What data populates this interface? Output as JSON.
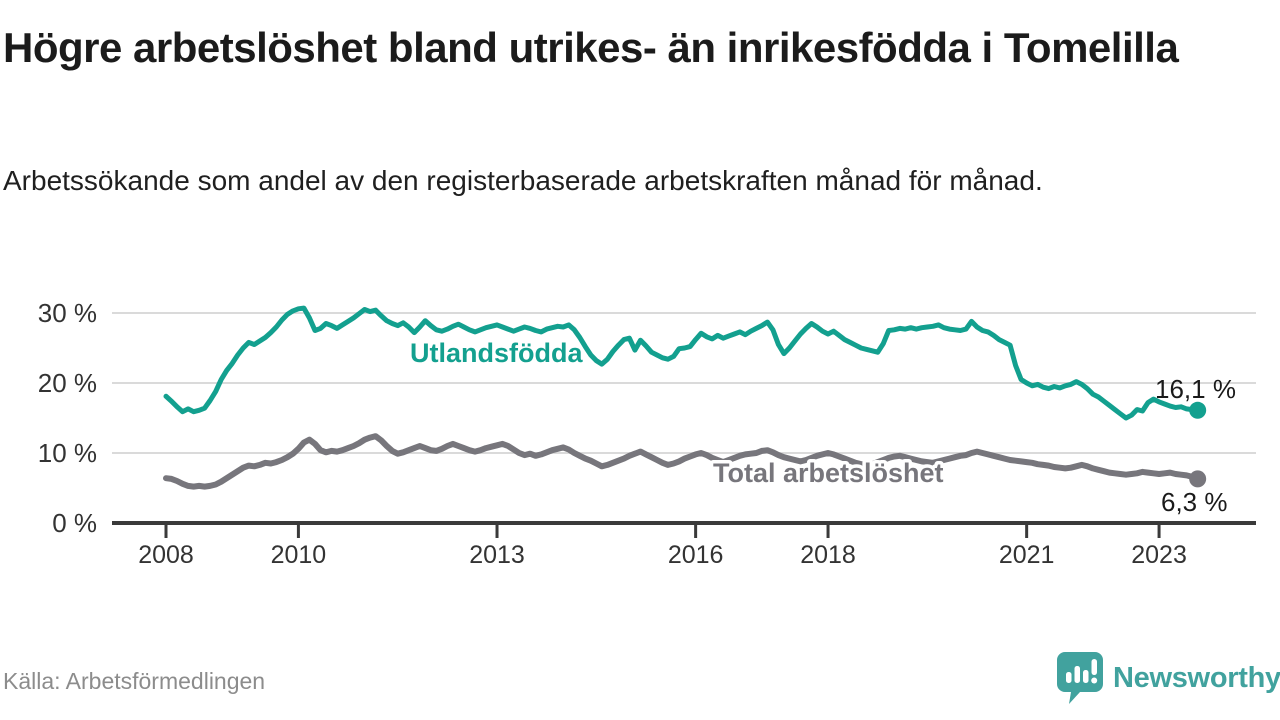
{
  "header": {
    "title": "Högre arbetslöshet bland utrikes- än inrikesfödda i Tomelilla",
    "subtitle": "Arbetssökande som andel av den registerbaserade arbetskraften månad för månad."
  },
  "footer": {
    "source": "Källa: Arbetsförmedlingen",
    "brand": "Newsworthy"
  },
  "colors": {
    "series_foreign_born": "#13a08f",
    "series_total": "#77767c",
    "grid": "#dadada",
    "axis": "#3a3a3a",
    "tick_label": "#333333",
    "value_label": "#1a1a1a",
    "brand_teal": "#41a29e",
    "source_gray": "#8c8c8c"
  },
  "chart_data": {
    "type": "line",
    "xlabel": "",
    "ylabel": "",
    "x_unit": "month",
    "x_start": "2008-01",
    "x_end": "2023-08",
    "ylim": [
      0,
      32
    ],
    "grid": true,
    "legend_position": "inline-labels",
    "y_ticks": [
      {
        "v": 0,
        "label": "0 %"
      },
      {
        "v": 10,
        "label": "10 %"
      },
      {
        "v": 20,
        "label": "20 %"
      },
      {
        "v": 30,
        "label": "30 %"
      }
    ],
    "x_ticks": [
      {
        "i": 0,
        "label": "2008"
      },
      {
        "i": 24,
        "label": "2010"
      },
      {
        "i": 60,
        "label": "2013"
      },
      {
        "i": 96,
        "label": "2016"
      },
      {
        "i": 120,
        "label": "2018"
      },
      {
        "i": 156,
        "label": "2021"
      },
      {
        "i": 180,
        "label": "2023"
      }
    ],
    "series": [
      {
        "name": "Utlandsfödda",
        "color": "#13a08f",
        "end_label": "16,1 %",
        "end_value": 16.1,
        "values": [
          18.1,
          17.4,
          16.6,
          15.9,
          16.3,
          15.9,
          16.1,
          16.4,
          17.5,
          18.8,
          20.5,
          21.8,
          22.8,
          24.0,
          25.0,
          25.8,
          25.5,
          26.0,
          26.5,
          27.2,
          28.0,
          29.0,
          29.8,
          30.3,
          30.6,
          30.7,
          29.3,
          27.5,
          27.8,
          28.5,
          28.2,
          27.8,
          28.3,
          28.8,
          29.3,
          29.9,
          30.5,
          30.2,
          30.4,
          29.6,
          28.9,
          28.5,
          28.2,
          28.6,
          28.0,
          27.2,
          28.0,
          28.9,
          28.2,
          27.6,
          27.4,
          27.7,
          28.1,
          28.4,
          28.0,
          27.6,
          27.3,
          27.6,
          27.9,
          28.1,
          28.3,
          28.0,
          27.7,
          27.4,
          27.7,
          28.0,
          27.8,
          27.5,
          27.3,
          27.7,
          27.9,
          28.1,
          28.0,
          28.3,
          27.6,
          26.5,
          25.2,
          24.0,
          23.2,
          22.7,
          23.4,
          24.5,
          25.4,
          26.2,
          26.4,
          24.7,
          26.1,
          25.3,
          24.4,
          24.0,
          23.6,
          23.4,
          23.8,
          24.9,
          25.0,
          25.2,
          26.2,
          27.1,
          26.6,
          26.3,
          26.8,
          26.4,
          26.7,
          27.0,
          27.3,
          26.9,
          27.4,
          27.8,
          28.2,
          28.7,
          27.6,
          25.5,
          24.2,
          25.0,
          26.0,
          27.0,
          27.8,
          28.5,
          28.0,
          27.4,
          27.0,
          27.4,
          26.8,
          26.2,
          25.8,
          25.4,
          25.0,
          24.8,
          24.6,
          24.4,
          25.6,
          27.5,
          27.6,
          27.8,
          27.7,
          27.9,
          27.7,
          27.9,
          28.0,
          28.1,
          28.3,
          27.9,
          27.7,
          27.6,
          27.5,
          27.7,
          28.8,
          28.0,
          27.5,
          27.3,
          26.8,
          26.2,
          25.8,
          25.4,
          22.5,
          20.5,
          20.0,
          19.6,
          19.8,
          19.4,
          19.2,
          19.5,
          19.3,
          19.6,
          19.8,
          20.2,
          19.8,
          19.2,
          18.4,
          18.0,
          17.4,
          16.8,
          16.2,
          15.6,
          15.0,
          15.4,
          16.2,
          16.0,
          17.2,
          17.7,
          17.3,
          17.0,
          16.7,
          16.5,
          16.6,
          16.3,
          16.2,
          16.1
        ]
      },
      {
        "name": "Total arbetslöshet",
        "color": "#77767c",
        "end_label": "6,3 %",
        "end_value": 6.3,
        "values": [
          6.4,
          6.3,
          6.0,
          5.6,
          5.3,
          5.2,
          5.3,
          5.2,
          5.3,
          5.5,
          5.9,
          6.4,
          6.9,
          7.4,
          7.9,
          8.2,
          8.1,
          8.3,
          8.6,
          8.5,
          8.7,
          9.0,
          9.4,
          9.9,
          10.6,
          11.5,
          11.9,
          11.3,
          10.4,
          10.1,
          10.3,
          10.2,
          10.4,
          10.7,
          11.0,
          11.4,
          11.9,
          12.2,
          12.4,
          11.8,
          11.0,
          10.3,
          9.9,
          10.1,
          10.4,
          10.7,
          11.0,
          10.7,
          10.4,
          10.3,
          10.6,
          11.0,
          11.3,
          11.0,
          10.7,
          10.4,
          10.2,
          10.4,
          10.7,
          10.9,
          11.1,
          11.3,
          11.0,
          10.5,
          10.0,
          9.7,
          9.9,
          9.6,
          9.8,
          10.1,
          10.4,
          10.6,
          10.8,
          10.5,
          10.0,
          9.6,
          9.2,
          8.9,
          8.5,
          8.1,
          8.3,
          8.6,
          8.9,
          9.2,
          9.6,
          9.9,
          10.2,
          9.8,
          9.4,
          9.0,
          8.6,
          8.3,
          8.5,
          8.8,
          9.2,
          9.5,
          9.8,
          10.0,
          9.7,
          9.3,
          9.0,
          8.7,
          9.0,
          9.3,
          9.6,
          9.8,
          9.9,
          10.0,
          10.3,
          10.4,
          10.1,
          9.7,
          9.4,
          9.2,
          9.0,
          8.8,
          9.0,
          9.3,
          9.6,
          9.8,
          10.0,
          9.8,
          9.5,
          9.2,
          8.9,
          8.6,
          8.4,
          8.2,
          8.4,
          8.7,
          9.0,
          9.3,
          9.5,
          9.6,
          9.4,
          9.2,
          9.0,
          8.8,
          8.7,
          8.6,
          8.8,
          9.0,
          9.2,
          9.4,
          9.6,
          9.7,
          10.0,
          10.2,
          10.0,
          9.8,
          9.6,
          9.4,
          9.2,
          9.0,
          8.9,
          8.8,
          8.7,
          8.6,
          8.4,
          8.3,
          8.2,
          8.0,
          7.9,
          7.8,
          7.9,
          8.1,
          8.3,
          8.1,
          7.8,
          7.6,
          7.4,
          7.2,
          7.1,
          7.0,
          6.9,
          7.0,
          7.1,
          7.3,
          7.2,
          7.1,
          7.0,
          7.1,
          7.2,
          7.0,
          6.9,
          6.8,
          6.6,
          6.3
        ]
      }
    ]
  }
}
